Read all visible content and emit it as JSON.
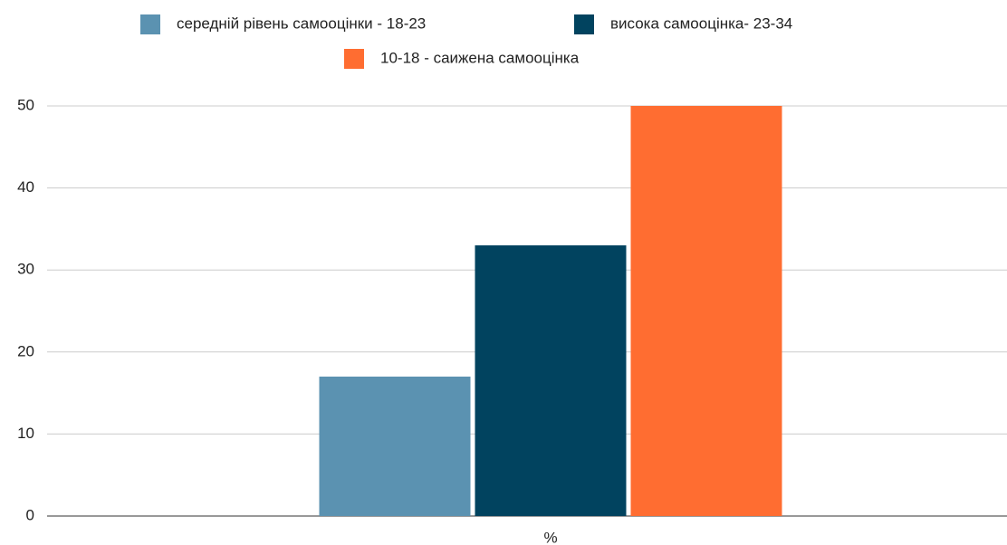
{
  "chart_data": {
    "type": "bar",
    "categories": [
      "%"
    ],
    "series": [
      {
        "name": "середній рівень самооцінки - 18-23",
        "color": "#5b92b1",
        "values": [
          17
        ]
      },
      {
        "name": "висока самооцінка- 23-34",
        "color": "#01435f",
        "values": [
          33
        ]
      },
      {
        "name": "10-18 - саижена самооцінка",
        "color": "#ff6d31",
        "values": [
          50
        ]
      }
    ],
    "ylim": [
      0,
      50
    ],
    "yticks": [
      0,
      10,
      20,
      30,
      40,
      50
    ],
    "grid": true,
    "legend": "top"
  }
}
